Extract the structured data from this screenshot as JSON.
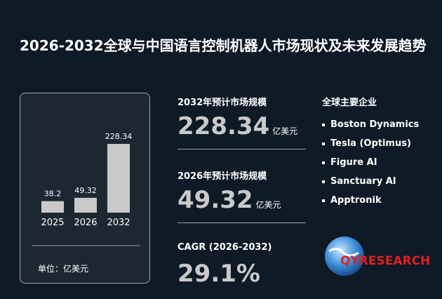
{
  "title": "2026-2032全球与中国语言控制机器人市场现状及未来发展趋势",
  "chart_data": {
    "type": "bar",
    "categories": [
      "2025",
      "2026",
      "2032"
    ],
    "values": [
      38.2,
      49.32,
      228.34
    ],
    "color": "#c9c9c9",
    "unit": "单位：亿美元"
  },
  "stats": [
    {
      "label": "2032年预计市场规模",
      "value": "228.34",
      "unit": "亿美元"
    },
    {
      "label": "2026年预计市场规模",
      "value": "49.32",
      "unit": "亿美元"
    },
    {
      "label": "CAGR (2026-2032)",
      "value": "29.1%"
    }
  ],
  "companies": {
    "title": "全球主要企业",
    "items": [
      "Boston Dynamics",
      "Tesla (Optimus)",
      "Figure AI",
      "Sanctuary AI",
      "Apptronik"
    ]
  },
  "logo": "QYRESEARCH"
}
